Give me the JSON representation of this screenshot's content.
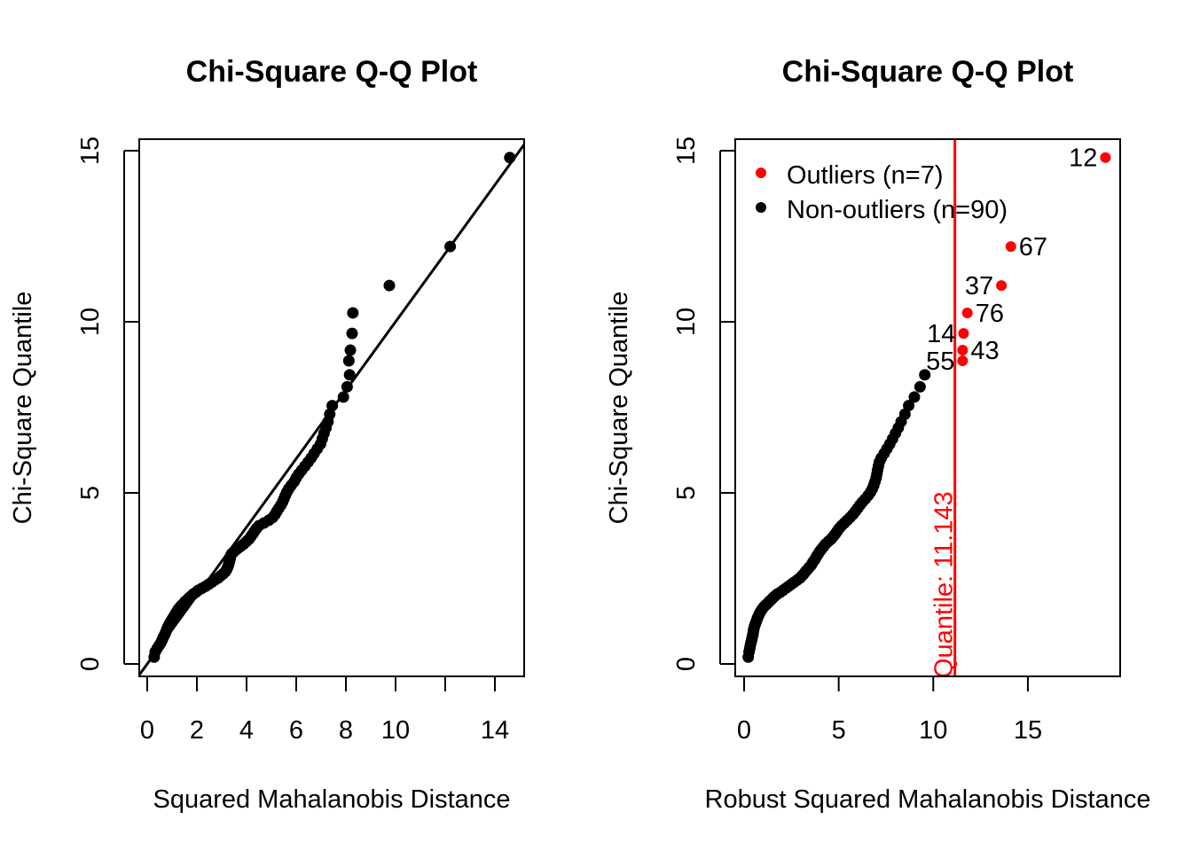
{
  "chart_data": [
    {
      "type": "scatter",
      "title": "Chi-Square Q-Q Plot",
      "xlabel": "Squared Mahalanobis Distance",
      "ylabel": "Chi-Square Quantile",
      "xlim": [
        -0.3,
        15.2
      ],
      "ylim": [
        -0.35,
        15.35
      ],
      "xticks": [
        0,
        2,
        4,
        6,
        8,
        10,
        12,
        14
      ],
      "xtick_labels": [
        "0",
        "2",
        "4",
        "6",
        "8",
        "10",
        "",
        "14"
      ],
      "yticks": [
        0,
        5,
        10,
        15
      ],
      "ytick_labels": [
        "0",
        "5",
        "10",
        "15"
      ],
      "reference_line": {
        "intercept": 0,
        "slope": 1
      },
      "point_color": "#000000",
      "x": [
        0.28,
        0.32,
        0.4,
        0.48,
        0.55,
        0.6,
        0.65,
        0.7,
        0.74,
        0.78,
        0.82,
        0.86,
        0.9,
        0.95,
        1.0,
        1.05,
        1.1,
        1.15,
        1.2,
        1.25,
        1.32,
        1.38,
        1.45,
        1.52,
        1.6,
        1.68,
        1.76,
        1.85,
        1.95,
        2.05,
        2.2,
        2.35,
        2.48,
        2.6,
        2.72,
        2.85,
        2.95,
        3.05,
        3.15,
        3.2,
        3.24,
        3.27,
        3.3,
        3.32,
        3.34,
        3.36,
        3.4,
        3.5,
        3.62,
        3.75,
        3.88,
        4.0,
        4.1,
        4.18,
        4.25,
        4.32,
        4.4,
        4.5,
        4.7,
        4.9,
        5.05,
        5.15,
        5.22,
        5.3,
        5.38,
        5.45,
        5.5,
        5.56,
        5.62,
        5.7,
        5.8,
        5.92,
        6.0,
        6.1,
        6.22,
        6.35,
        6.48,
        6.6,
        6.72,
        6.85,
        6.98,
        7.05,
        7.12,
        7.2,
        7.28,
        7.35,
        7.45,
        7.9,
        8.05,
        8.15,
        8.12,
        8.18,
        8.25,
        8.28,
        9.75,
        12.2,
        14.6
      ],
      "y": [
        0.2,
        0.35,
        0.45,
        0.54,
        0.62,
        0.7,
        0.78,
        0.85,
        0.92,
        0.99,
        1.06,
        1.12,
        1.18,
        1.24,
        1.3,
        1.36,
        1.42,
        1.48,
        1.54,
        1.6,
        1.66,
        1.71,
        1.76,
        1.82,
        1.87,
        1.93,
        1.98,
        2.04,
        2.09,
        2.15,
        2.21,
        2.27,
        2.33,
        2.39,
        2.45,
        2.51,
        2.57,
        2.63,
        2.7,
        2.76,
        2.83,
        2.89,
        2.96,
        3.02,
        3.09,
        3.16,
        3.22,
        3.29,
        3.36,
        3.43,
        3.5,
        3.58,
        3.65,
        3.73,
        3.8,
        3.88,
        3.96,
        4.04,
        4.12,
        4.2,
        4.28,
        4.37,
        4.46,
        4.55,
        4.64,
        4.73,
        4.82,
        4.92,
        5.02,
        5.12,
        5.22,
        5.33,
        5.44,
        5.55,
        5.66,
        5.78,
        5.9,
        6.02,
        6.15,
        6.29,
        6.43,
        6.58,
        6.74,
        6.9,
        7.08,
        7.3,
        7.55,
        7.8,
        8.1,
        8.45,
        8.86,
        9.17,
        9.66,
        10.26,
        11.06,
        12.2,
        14.8
      ]
    },
    {
      "type": "scatter",
      "title": "Chi-Square Q-Q Plot",
      "xlabel": "Robust Squared Mahalanobis Distance",
      "ylabel": "Chi-Square Quantile",
      "xlim": [
        -0.45,
        19.9
      ],
      "ylim": [
        -0.35,
        15.35
      ],
      "xticks": [
        0,
        5,
        10,
        15
      ],
      "xtick_labels": [
        "0",
        "5",
        "10",
        "15"
      ],
      "yticks": [
        0,
        5,
        10,
        15
      ],
      "ytick_labels": [
        "0",
        "5",
        "10",
        "15"
      ],
      "cutoff": {
        "value": 11.143,
        "label": "Quantile:  11.143",
        "color": "#ff0000"
      },
      "legend": {
        "placement": "top-left",
        "entries": [
          {
            "label": "Outliers (n=7)",
            "color": "#ff0000"
          },
          {
            "label": "Non-outliers (n=90)",
            "color": "#000000"
          }
        ]
      },
      "nonoutliers": {
        "color": "#000000",
        "x": [
          0.22,
          0.26,
          0.3,
          0.33,
          0.36,
          0.4,
          0.43,
          0.46,
          0.48,
          0.5,
          0.53,
          0.56,
          0.6,
          0.64,
          0.68,
          0.72,
          0.77,
          0.82,
          0.88,
          0.95,
          1.03,
          1.12,
          1.22,
          1.32,
          1.42,
          1.52,
          1.62,
          1.75,
          1.9,
          2.05,
          2.2,
          2.35,
          2.5,
          2.65,
          2.8,
          2.95,
          3.05,
          3.15,
          3.25,
          3.35,
          3.45,
          3.55,
          3.62,
          3.7,
          3.78,
          3.85,
          3.92,
          4.0,
          4.1,
          4.2,
          4.3,
          4.45,
          4.6,
          4.72,
          4.82,
          4.92,
          5.02,
          5.15,
          5.3,
          5.45,
          5.6,
          5.75,
          5.88,
          6.0,
          6.12,
          6.25,
          6.4,
          6.55,
          6.68,
          6.78,
          6.85,
          6.92,
          6.98,
          7.02,
          7.05,
          7.1,
          7.15,
          7.25,
          7.4,
          7.55,
          7.7,
          7.85,
          8.0,
          8.15,
          8.3,
          8.5,
          8.7,
          9.0,
          9.3,
          9.55
        ],
        "y": [
          0.2,
          0.35,
          0.45,
          0.54,
          0.62,
          0.7,
          0.78,
          0.85,
          0.92,
          0.99,
          1.06,
          1.12,
          1.18,
          1.24,
          1.3,
          1.36,
          1.42,
          1.48,
          1.54,
          1.6,
          1.66,
          1.71,
          1.76,
          1.82,
          1.87,
          1.93,
          1.98,
          2.04,
          2.09,
          2.15,
          2.21,
          2.27,
          2.33,
          2.39,
          2.45,
          2.51,
          2.57,
          2.63,
          2.7,
          2.76,
          2.83,
          2.89,
          2.96,
          3.02,
          3.09,
          3.16,
          3.22,
          3.29,
          3.36,
          3.43,
          3.5,
          3.58,
          3.65,
          3.73,
          3.8,
          3.88,
          3.96,
          4.04,
          4.12,
          4.2,
          4.28,
          4.37,
          4.46,
          4.55,
          4.64,
          4.73,
          4.82,
          4.92,
          5.02,
          5.12,
          5.22,
          5.33,
          5.44,
          5.55,
          5.66,
          5.78,
          5.9,
          6.02,
          6.15,
          6.29,
          6.43,
          6.58,
          6.74,
          6.9,
          7.08,
          7.3,
          7.55,
          7.8,
          8.1,
          8.45
        ]
      },
      "outliers": {
        "color": "#ff0000",
        "points": [
          {
            "label": "55",
            "x": 11.55,
            "y": 8.86
          },
          {
            "label": "43",
            "x": 11.55,
            "y": 9.17
          },
          {
            "label": "14",
            "x": 11.6,
            "y": 9.66
          },
          {
            "label": "76",
            "x": 11.8,
            "y": 10.26
          },
          {
            "label": "37",
            "x": 13.6,
            "y": 11.06
          },
          {
            "label": "67",
            "x": 14.1,
            "y": 12.2
          },
          {
            "label": "12",
            "x": 19.1,
            "y": 14.8
          }
        ]
      }
    }
  ]
}
